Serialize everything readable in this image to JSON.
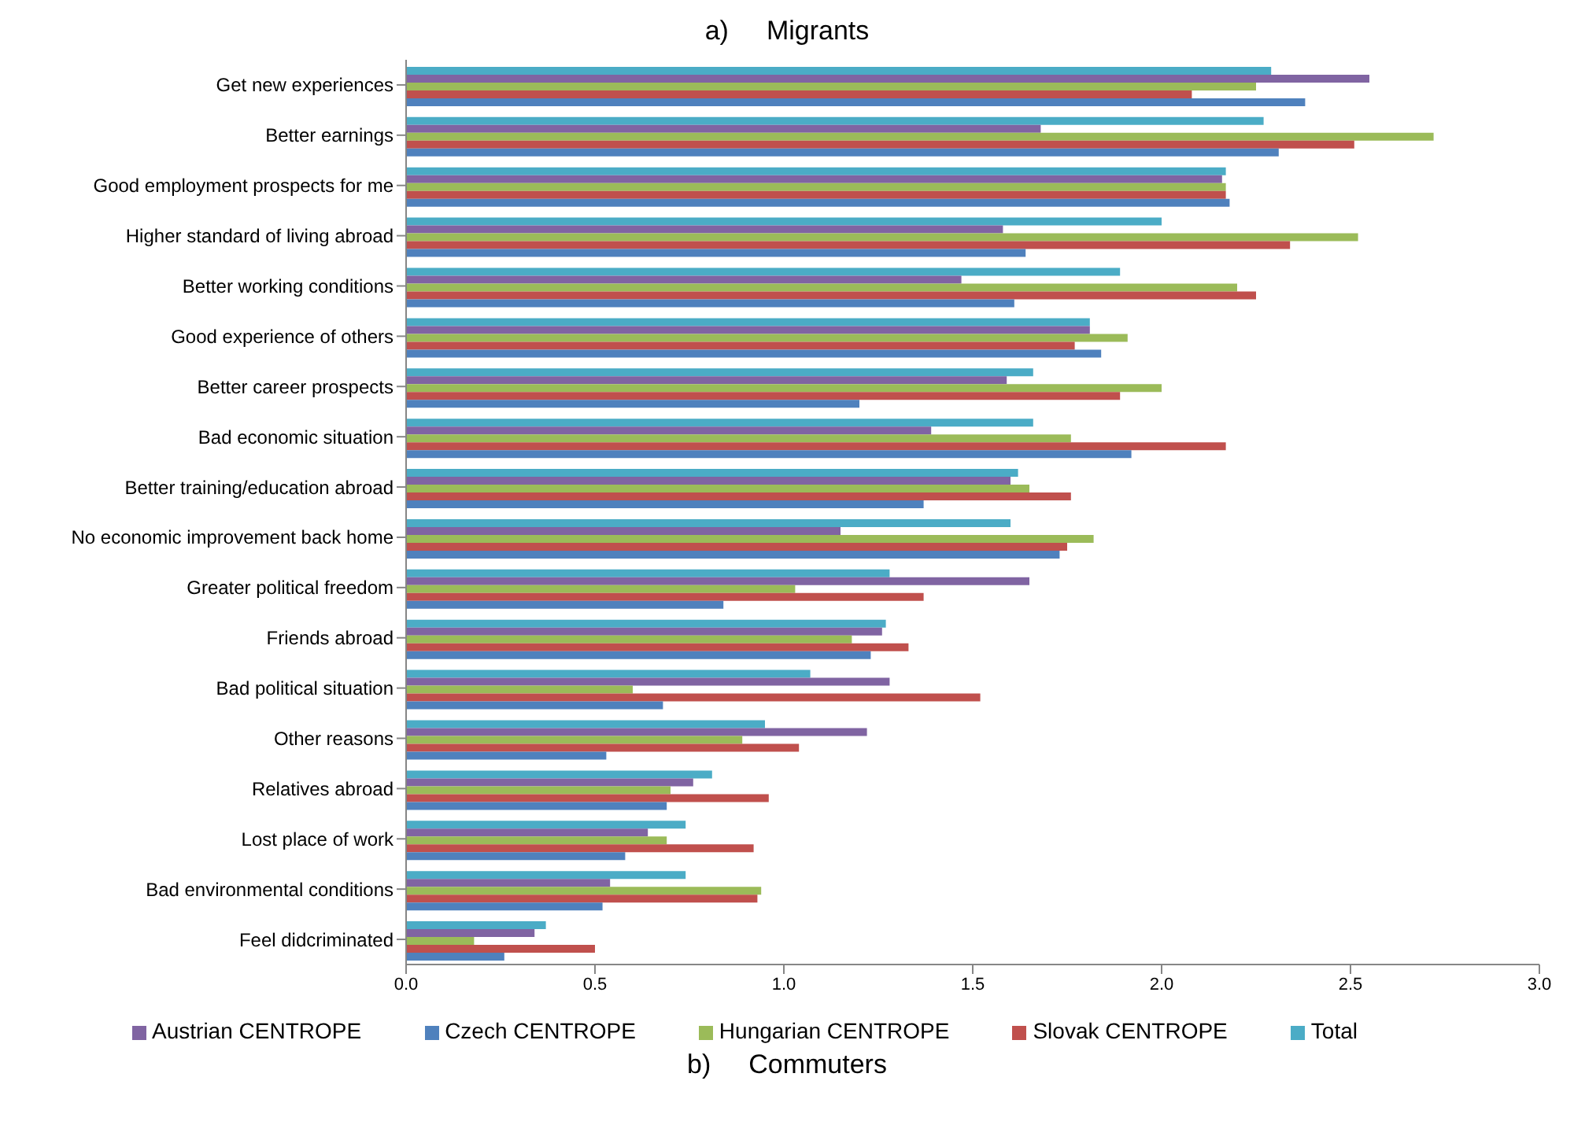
{
  "chart_data": {
    "type": "bar",
    "orientation": "horizontal",
    "title": "a)     Migrants",
    "categories": [
      "Get new experiences",
      "Better earnings",
      "Good employment prospects for me",
      "Higher standard of living abroad",
      "Better working conditions",
      "Good experience of others",
      "Better career prospects",
      "Bad economic situation",
      "Better training/education abroad",
      "No economic improvement back home",
      "Greater political freedom",
      "Friends abroad",
      "Bad political situation",
      "Other reasons",
      "Relatives abroad",
      "Lost place of work",
      "Bad environmental conditions",
      "Feel didcriminated"
    ],
    "series": [
      {
        "name": "Total",
        "color": "#4bacc6",
        "values": [
          2.29,
          2.27,
          2.17,
          2.0,
          1.89,
          1.81,
          1.66,
          1.66,
          1.62,
          1.6,
          1.28,
          1.27,
          1.07,
          0.95,
          0.81,
          0.74,
          0.74,
          0.37
        ]
      },
      {
        "name": "Austrian CENTROPE",
        "color": "#8064a2",
        "values": [
          2.55,
          1.68,
          2.16,
          1.58,
          1.47,
          1.81,
          1.59,
          1.39,
          1.6,
          1.15,
          1.65,
          1.26,
          1.28,
          1.22,
          0.76,
          0.64,
          0.54,
          0.34
        ]
      },
      {
        "name": "Hungarian CENTROPE",
        "color": "#9bbb59",
        "values": [
          2.25,
          2.72,
          2.17,
          2.52,
          2.2,
          1.91,
          2.0,
          1.76,
          1.65,
          1.82,
          1.03,
          1.18,
          0.6,
          0.89,
          0.7,
          0.69,
          0.94,
          0.18
        ]
      },
      {
        "name": "Slovak CENTROPE",
        "color": "#c0504d",
        "values": [
          2.08,
          2.51,
          2.17,
          2.34,
          2.25,
          1.77,
          1.89,
          2.17,
          1.76,
          1.75,
          1.37,
          1.33,
          1.52,
          1.04,
          0.96,
          0.92,
          0.93,
          0.5
        ]
      },
      {
        "name": "Czech CENTROPE",
        "color": "#4f81bd",
        "values": [
          2.38,
          2.31,
          2.18,
          1.64,
          1.61,
          1.84,
          1.2,
          1.92,
          1.37,
          1.73,
          0.84,
          1.23,
          0.68,
          0.53,
          0.69,
          0.58,
          0.52,
          0.26
        ]
      }
    ],
    "xlim": [
      0,
      3
    ],
    "xticks": [
      {
        "value": 0,
        "label": "0.0"
      },
      {
        "value": 0.5,
        "label": "0.5"
      },
      {
        "value": 1,
        "label": "1.0"
      },
      {
        "value": 1.5,
        "label": "1.5"
      },
      {
        "value": 2,
        "label": "2.0"
      },
      {
        "value": 2.5,
        "label": "2.5"
      },
      {
        "value": 3,
        "label": "3.0"
      }
    ],
    "legend": "bottom",
    "grid": false,
    "annotations": [
      "b)     Commuters"
    ]
  }
}
